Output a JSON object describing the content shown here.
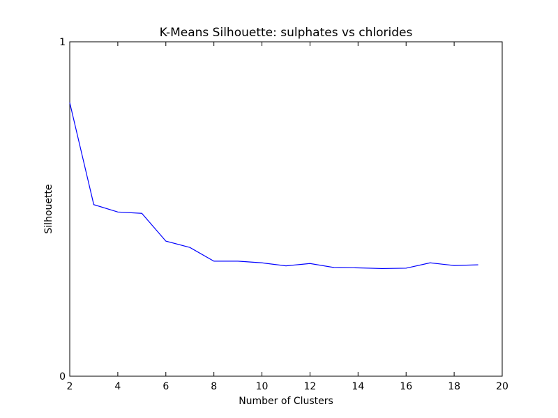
{
  "chart_data": {
    "type": "line",
    "title": "K-Means Silhouette: sulphates vs chlorides",
    "xlabel": "Number of Clusters",
    "ylabel": "Silhouette",
    "xlim": [
      2,
      20
    ],
    "ylim": [
      0,
      1
    ],
    "xticks": [
      "2",
      "4",
      "6",
      "8",
      "10",
      "12",
      "14",
      "16",
      "18",
      "20"
    ],
    "yticks": [
      "0",
      "1"
    ],
    "grid": false,
    "series": [
      {
        "color": "#0000ff",
        "x": [
          2,
          3,
          4,
          5,
          6,
          7,
          8,
          9,
          10,
          11,
          12,
          13,
          14,
          15,
          16,
          17,
          18,
          19
        ],
        "y": [
          0.818,
          0.513,
          0.491,
          0.487,
          0.404,
          0.385,
          0.344,
          0.344,
          0.339,
          0.33,
          0.337,
          0.325,
          0.324,
          0.322,
          0.323,
          0.339,
          0.331,
          0.333
        ]
      }
    ]
  }
}
